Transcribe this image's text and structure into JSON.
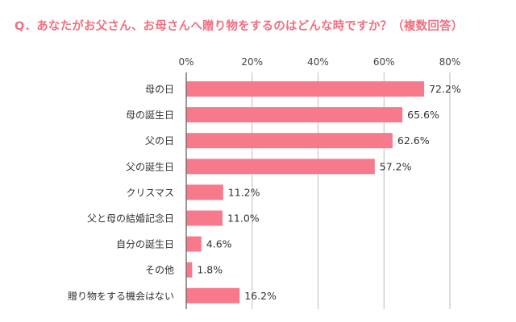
{
  "chart_data": {
    "type": "bar",
    "orientation": "horizontal",
    "title": "Q．あなたがお父さん、お母さんへ贈り物をするのはどんな時ですか？（複数回答）",
    "categories": [
      "母の日",
      "母の誕生日",
      "父の日",
      "父の誕生日",
      "クリスマス",
      "父と母の結婚記念日",
      "自分の誕生日",
      "その他",
      "贈り物をする機会はない"
    ],
    "values": [
      72.2,
      65.6,
      62.6,
      57.2,
      11.2,
      11.0,
      4.6,
      1.8,
      16.2
    ],
    "value_labels": [
      "72.2%",
      "65.6%",
      "62.6%",
      "57.2%",
      "11.2%",
      "11.0%",
      "4.6%",
      "1.8%",
      "16.2%"
    ],
    "x_ticks": [
      "0%",
      "20%",
      "40%",
      "60%",
      "80%"
    ],
    "x_tick_values": [
      0,
      20,
      40,
      60,
      80
    ],
    "xlim": [
      0,
      80
    ],
    "grid": true,
    "bar_color": "#f77a8c",
    "title_color": "#f07080"
  }
}
